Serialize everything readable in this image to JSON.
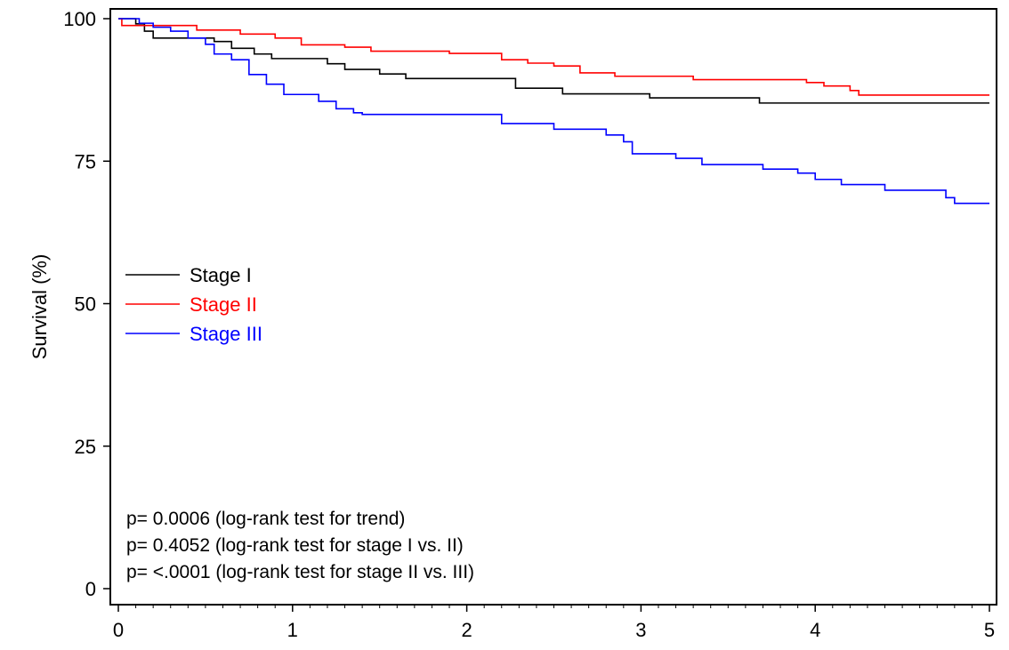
{
  "chart_data": {
    "type": "line",
    "step": true,
    "xlabel": "",
    "ylabel": "Survival (%)",
    "xlim": [
      0,
      5
    ],
    "ylim": [
      0,
      100
    ],
    "x_ticks": [
      "0",
      "1",
      "2",
      "3",
      "4",
      "5"
    ],
    "y_ticks": [
      "0",
      "25",
      "50",
      "75",
      "100"
    ],
    "grid": false,
    "legend_placement": "left-middle",
    "series": [
      {
        "name": "Stage I",
        "color": "#000000",
        "points": [
          [
            0,
            100
          ],
          [
            0.1,
            99.1
          ],
          [
            0.15,
            97.8
          ],
          [
            0.2,
            96.6
          ],
          [
            0.55,
            96
          ],
          [
            0.65,
            94.8
          ],
          [
            0.78,
            93.8
          ],
          [
            0.88,
            93
          ],
          [
            1.2,
            92.1
          ],
          [
            1.3,
            91.1
          ],
          [
            1.5,
            90.3
          ],
          [
            1.65,
            89.5
          ],
          [
            2.28,
            87.8
          ],
          [
            2.55,
            86.8
          ],
          [
            3.05,
            86.1
          ],
          [
            3.68,
            85.2
          ],
          [
            5,
            85.2
          ]
        ]
      },
      {
        "name": "Stage II",
        "color": "#ff0000",
        "points": [
          [
            0,
            100
          ],
          [
            0.02,
            98.8
          ],
          [
            0.45,
            98
          ],
          [
            0.7,
            97.3
          ],
          [
            0.9,
            96.6
          ],
          [
            1.05,
            95.4
          ],
          [
            1.3,
            95
          ],
          [
            1.45,
            94.3
          ],
          [
            1.9,
            93.9
          ],
          [
            2.2,
            92.8
          ],
          [
            2.35,
            92.2
          ],
          [
            2.5,
            91.7
          ],
          [
            2.65,
            90.5
          ],
          [
            2.85,
            89.9
          ],
          [
            3.3,
            89.3
          ],
          [
            3.95,
            88.8
          ],
          [
            4.05,
            88.2
          ],
          [
            4.2,
            87.4
          ],
          [
            4.25,
            86.6
          ],
          [
            5,
            86.6
          ]
        ]
      },
      {
        "name": "Stage III",
        "color": "#0000ff",
        "points": [
          [
            0,
            100
          ],
          [
            0.12,
            99.2
          ],
          [
            0.2,
            98.5
          ],
          [
            0.3,
            97.8
          ],
          [
            0.4,
            96.6
          ],
          [
            0.5,
            95.5
          ],
          [
            0.55,
            93.8
          ],
          [
            0.65,
            92.8
          ],
          [
            0.75,
            90.2
          ],
          [
            0.85,
            88.5
          ],
          [
            0.95,
            86.7
          ],
          [
            1.15,
            85.5
          ],
          [
            1.25,
            84.2
          ],
          [
            1.35,
            83.5
          ],
          [
            1.4,
            83.2
          ],
          [
            2.2,
            81.6
          ],
          [
            2.5,
            80.6
          ],
          [
            2.8,
            79.6
          ],
          [
            2.9,
            78.4
          ],
          [
            2.95,
            76.3
          ],
          [
            3.2,
            75.5
          ],
          [
            3.35,
            74.4
          ],
          [
            3.7,
            73.6
          ],
          [
            3.9,
            72.9
          ],
          [
            4.0,
            71.8
          ],
          [
            4.15,
            70.9
          ],
          [
            4.4,
            69.9
          ],
          [
            4.6,
            69.9
          ],
          [
            4.75,
            68.6
          ],
          [
            4.8,
            67.6
          ],
          [
            5,
            67.6
          ]
        ]
      }
    ],
    "annotations": [
      "p= 0.0006 (log-rank test for trend)",
      "p= 0.4052 (log-rank test for stage I vs. II)",
      "p= <.0001 (log-rank test for stage II vs. III)"
    ]
  }
}
